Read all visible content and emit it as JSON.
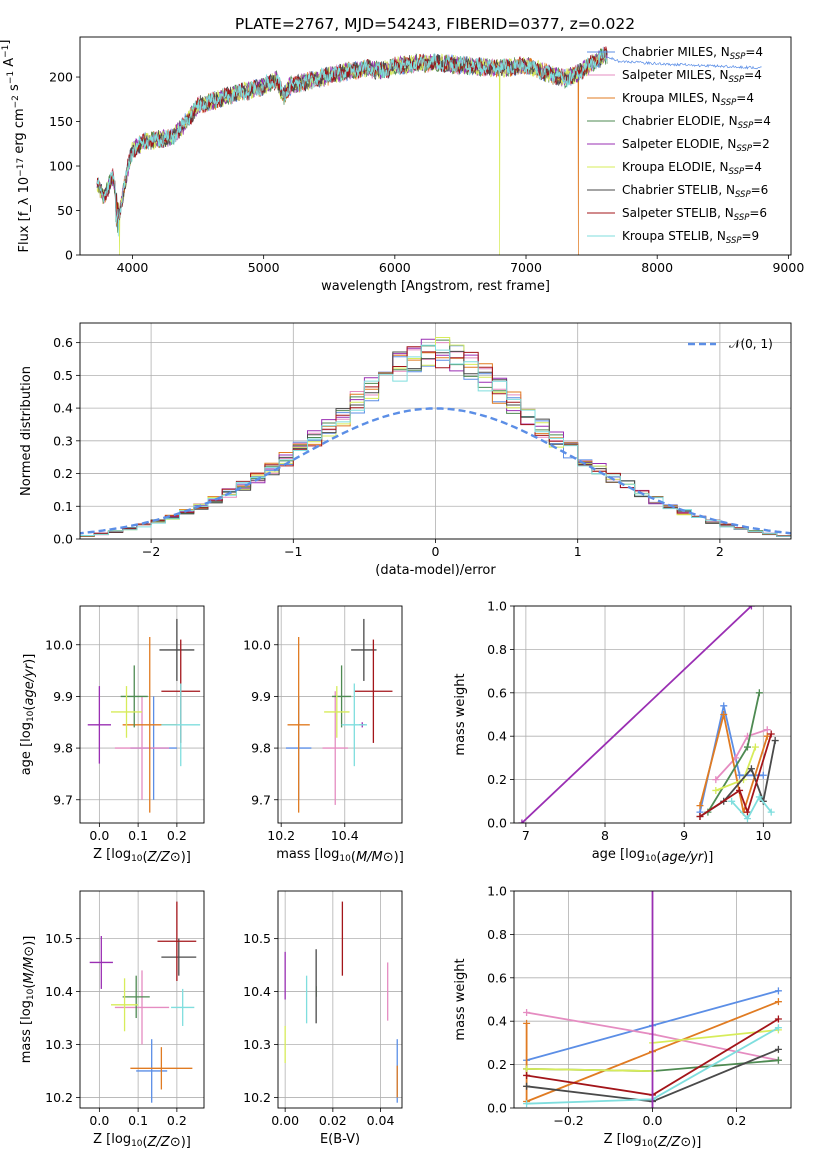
{
  "figure_title": "PLATE=2767, MJD=54243, FIBERID=0377, z=0.022",
  "models": [
    {
      "name": "Chabrier MILES",
      "nssp": "4",
      "color": "#5b8ee6"
    },
    {
      "name": "Salpeter MILES",
      "nssp": "4",
      "color": "#e58cc1"
    },
    {
      "name": "Kroupa MILES",
      "nssp": "4",
      "color": "#e07b22"
    },
    {
      "name": "Chabrier ELODIE",
      "nssp": "4",
      "color": "#4e8a52"
    },
    {
      "name": "Salpeter ELODIE",
      "nssp": "2",
      "color": "#9a2fb3"
    },
    {
      "name": "Kroupa ELODIE",
      "nssp": "4",
      "color": "#d7ec5a"
    },
    {
      "name": "Chabrier STELIB",
      "nssp": "6",
      "color": "#4a4a4a"
    },
    {
      "name": "Salpeter STELIB",
      "nssp": "6",
      "color": "#a3151a"
    },
    {
      "name": "Kroupa STELIB",
      "nssp": "9",
      "color": "#7fdede"
    }
  ],
  "chart_data": [
    {
      "id": "spectrum",
      "type": "line",
      "xlabel": "wavelength [Angstrom, rest frame]",
      "ylabel": "Flux [f_λ 10^-17 erg cm^-2 s^-1 A^-1]",
      "xlim": [
        3600,
        9020
      ],
      "ylim": [
        0,
        245
      ],
      "xticks": [
        4000,
        5000,
        6000,
        7000,
        8000,
        9000
      ],
      "yticks": [
        0,
        50,
        100,
        150,
        200
      ],
      "spectrum_knots": [
        [
          3730,
          80
        ],
        [
          3780,
          65
        ],
        [
          3850,
          88
        ],
        [
          3900,
          45
        ],
        [
          3960,
          95
        ],
        [
          4000,
          118
        ],
        [
          4100,
          128
        ],
        [
          4200,
          130
        ],
        [
          4300,
          132
        ],
        [
          4400,
          148
        ],
        [
          4500,
          168
        ],
        [
          4600,
          172
        ],
        [
          4700,
          178
        ],
        [
          4800,
          182
        ],
        [
          4900,
          185
        ],
        [
          5000,
          190
        ],
        [
          5100,
          197
        ],
        [
          5150,
          178
        ],
        [
          5200,
          190
        ],
        [
          5400,
          198
        ],
        [
          5600,
          205
        ],
        [
          5800,
          210
        ],
        [
          5900,
          207
        ],
        [
          6000,
          212
        ],
        [
          6200,
          216
        ],
        [
          6400,
          215
        ],
        [
          6600,
          212
        ],
        [
          6800,
          210
        ],
        [
          7000,
          213
        ],
        [
          7150,
          205
        ],
        [
          7300,
          198
        ],
        [
          7400,
          205
        ],
        [
          7500,
          215
        ],
        [
          7600,
          225
        ],
        [
          7700,
          218
        ],
        [
          8000,
          215
        ],
        [
          8500,
          212
        ],
        [
          8800,
          210
        ]
      ],
      "series_drop_wavelengths": {
        "Kroupa ELODIE": [
          3900,
          6800
        ],
        "Kroupa MILES": [
          7400
        ]
      },
      "legend_position": "upper right",
      "grid": false
    },
    {
      "id": "residual-histogram",
      "type": "bar",
      "xlabel": "(data-model)/error",
      "ylabel": "Normed distribution",
      "xlim": [
        -2.5,
        2.5
      ],
      "ylim": [
        0,
        0.66
      ],
      "xticks": [
        -2,
        -1,
        0,
        1,
        2
      ],
      "yticks": [
        0.0,
        0.1,
        0.2,
        0.3,
        0.4,
        0.5,
        0.6
      ],
      "bin_width": 0.1,
      "reference_curve": "𝒩(0, 1)",
      "legend_position": "upper right",
      "grid": true
    },
    {
      "id": "age-vs-Z",
      "type": "scatter",
      "xlabel": "Z [log10(Z/Z⊙)]",
      "ylabel": "age [log10(age/yr)]",
      "xlim": [
        -0.05,
        0.27
      ],
      "ylim": [
        9.655,
        10.075
      ],
      "xticks": [
        0.0,
        0.1,
        0.2
      ],
      "yticks": [
        9.7,
        9.8,
        9.9,
        10.0
      ],
      "points": [
        {
          "series": "Chabrier MILES",
          "x": 0.14,
          "xerr": 0.06,
          "y": 9.8,
          "yerr": 0.1
        },
        {
          "series": "Salpeter MILES",
          "x": 0.11,
          "xerr": 0.07,
          "y": 9.8,
          "yerr": 0.1
        },
        {
          "series": "Kroupa MILES",
          "x": 0.13,
          "xerr": 0.07,
          "y": 9.845,
          "yerr": 0.17
        },
        {
          "series": "Chabrier ELODIE",
          "x": 0.09,
          "xerr": 0.035,
          "y": 9.9,
          "yerr": 0.06
        },
        {
          "series": "Salpeter ELODIE",
          "x": 0.0,
          "xerr": 0.03,
          "y": 9.845,
          "yerr": 0.075
        },
        {
          "series": "Kroupa ELODIE",
          "x": 0.07,
          "xerr": 0.04,
          "y": 9.87,
          "yerr": 0.05
        },
        {
          "series": "Chabrier STELIB",
          "x": 0.2,
          "xerr": 0.045,
          "y": 9.99,
          "yerr": 0.06
        },
        {
          "series": "Salpeter STELIB",
          "x": 0.21,
          "xerr": 0.05,
          "y": 9.91,
          "yerr": 0.1
        },
        {
          "series": "Kroupa STELIB",
          "x": 0.21,
          "xerr": 0.05,
          "y": 9.845,
          "yerr": 0.08
        }
      ],
      "grid": true
    },
    {
      "id": "age-vs-mass",
      "type": "scatter",
      "xlabel": "mass [log10(M/M⊙)]",
      "ylabel": "",
      "xlim": [
        10.19,
        10.58
      ],
      "ylim": [
        9.655,
        10.075
      ],
      "xticks": [
        10.2,
        10.4
      ],
      "yticks": [
        9.7,
        9.8,
        9.9,
        10.0
      ],
      "points": [
        {
          "series": "Chabrier MILES",
          "x": 10.255,
          "xerr": 0.04,
          "y": 9.8,
          "yerr": 0.1
        },
        {
          "series": "Salpeter MILES",
          "x": 10.37,
          "xerr": 0.04,
          "y": 9.8,
          "yerr": 0.11
        },
        {
          "series": "Kroupa MILES",
          "x": 10.255,
          "xerr": 0.035,
          "y": 9.845,
          "yerr": 0.17
        },
        {
          "series": "Chabrier ELODIE",
          "x": 10.39,
          "xerr": 0.03,
          "y": 9.9,
          "yerr": 0.06
        },
        {
          "series": "Salpeter ELODIE",
          "x": 10.455,
          "xerr": 0.01,
          "y": 9.845,
          "yerr": 0.005
        },
        {
          "series": "Kroupa ELODIE",
          "x": 10.375,
          "xerr": 0.04,
          "y": 9.87,
          "yerr": 0.05
        },
        {
          "series": "Chabrier STELIB",
          "x": 10.46,
          "xerr": 0.04,
          "y": 9.99,
          "yerr": 0.06
        },
        {
          "series": "Salpeter STELIB",
          "x": 10.49,
          "xerr": 0.06,
          "y": 9.91,
          "yerr": 0.1
        },
        {
          "series": "Kroupa STELIB",
          "x": 10.43,
          "xerr": 0.04,
          "y": 9.845,
          "yerr": 0.08
        }
      ],
      "grid": true
    },
    {
      "id": "massweight-vs-age",
      "type": "line",
      "xlabel": "age [log10(age/yr)]",
      "ylabel": "mass weight",
      "xlim": [
        6.85,
        10.35
      ],
      "ylim": [
        0,
        1.0
      ],
      "xticks": [
        7,
        8,
        9,
        10
      ],
      "yticks": [
        0.0,
        0.2,
        0.4,
        0.6,
        0.8,
        1.0
      ],
      "series": [
        {
          "name": "Salpeter ELODIE",
          "x": [
            6.95,
            9.85
          ],
          "y": [
            0.0,
            1.0
          ]
        },
        {
          "name": "Chabrier MILES",
          "x": [
            9.2,
            9.5,
            9.7,
            10.0
          ],
          "y": [
            0.05,
            0.54,
            0.22,
            0.22
          ]
        },
        {
          "name": "Salpeter MILES",
          "x": [
            9.4,
            9.65,
            9.8,
            10.05
          ],
          "y": [
            0.2,
            0.3,
            0.4,
            0.43
          ]
        },
        {
          "name": "Kroupa MILES",
          "x": [
            9.2,
            9.5,
            9.75,
            10.05
          ],
          "y": [
            0.08,
            0.5,
            0.05,
            0.4
          ]
        },
        {
          "name": "Chabrier ELODIE",
          "x": [
            9.3,
            9.8,
            9.95
          ],
          "y": [
            0.05,
            0.35,
            0.6
          ]
        },
        {
          "name": "Kroupa ELODIE",
          "x": [
            9.4,
            9.75,
            9.9
          ],
          "y": [
            0.15,
            0.2,
            0.35
          ]
        },
        {
          "name": "Chabrier STELIB",
          "x": [
            9.2,
            9.5,
            9.85,
            10.0,
            10.15
          ],
          "y": [
            0.03,
            0.1,
            0.25,
            0.1,
            0.38
          ]
        },
        {
          "name": "Salpeter STELIB",
          "x": [
            9.2,
            9.7,
            9.8,
            10.1
          ],
          "y": [
            0.03,
            0.15,
            0.05,
            0.41
          ]
        },
        {
          "name": "Kroupa STELIB",
          "x": [
            9.6,
            9.8,
            9.95,
            10.1
          ],
          "y": [
            0.1,
            0.02,
            0.12,
            0.05
          ]
        }
      ],
      "grid": true
    },
    {
      "id": "mass-vs-Z",
      "type": "scatter",
      "xlabel": "Z [log10(Z/Z⊙)]",
      "ylabel": "mass [log10(M/M⊙)]",
      "xlim": [
        -0.05,
        0.27
      ],
      "ylim": [
        10.18,
        10.59
      ],
      "xticks": [
        0.0,
        0.1,
        0.2
      ],
      "yticks": [
        10.2,
        10.3,
        10.4,
        10.5
      ],
      "points": [
        {
          "series": "Chabrier MILES",
          "x": 0.135,
          "xerr": 0.04,
          "y": 10.25,
          "yerr": 0.06
        },
        {
          "series": "Salpeter MILES",
          "x": 0.11,
          "xerr": 0.07,
          "y": 10.37,
          "yerr": 0.07
        },
        {
          "series": "Kroupa MILES",
          "x": 0.16,
          "xerr": 0.08,
          "y": 10.255,
          "yerr": 0.04
        },
        {
          "series": "Chabrier ELODIE",
          "x": 0.095,
          "xerr": 0.035,
          "y": 10.39,
          "yerr": 0.04
        },
        {
          "series": "Salpeter ELODIE",
          "x": 0.005,
          "xerr": 0.03,
          "y": 10.455,
          "yerr": 0.05
        },
        {
          "series": "Kroupa ELODIE",
          "x": 0.065,
          "xerr": 0.035,
          "y": 10.375,
          "yerr": 0.05
        },
        {
          "series": "Chabrier STELIB",
          "x": 0.205,
          "xerr": 0.045,
          "y": 10.465,
          "yerr": 0.035
        },
        {
          "series": "Salpeter STELIB",
          "x": 0.2,
          "xerr": 0.05,
          "y": 10.495,
          "yerr": 0.075
        },
        {
          "series": "Kroupa STELIB",
          "x": 0.215,
          "xerr": 0.03,
          "y": 10.37,
          "yerr": 0.035
        }
      ],
      "grid": true
    },
    {
      "id": "mass-vs-EBV",
      "type": "scatter",
      "xlabel": "E(B-V)",
      "ylabel": "",
      "xlim": [
        -0.003,
        0.049
      ],
      "ylim": [
        10.18,
        10.59
      ],
      "xticks": [
        0.0,
        0.02,
        0.04
      ],
      "yticks": [
        10.2,
        10.3,
        10.4,
        10.5
      ],
      "points": [
        {
          "series": "Chabrier MILES",
          "x": 0.047,
          "y": 10.25,
          "yerr": 0.06
        },
        {
          "series": "Salpeter MILES",
          "x": 0.043,
          "y": 10.4,
          "yerr": 0.055
        },
        {
          "series": "Kroupa MILES",
          "x": 0.047,
          "y": 10.23,
          "yerr": 0.03
        },
        {
          "series": "Chabrier ELODIE",
          "x": 0.013,
          "y": 10.4,
          "yerr": 0.01
        },
        {
          "series": "Salpeter ELODIE",
          "x": 0.0,
          "y": 10.43,
          "yerr": 0.045
        },
        {
          "series": "Kroupa ELODIE",
          "x": 0.0,
          "y": 10.3,
          "yerr": 0.035
        },
        {
          "series": "Chabrier STELIB",
          "x": 0.013,
          "y": 10.41,
          "yerr": 0.07
        },
        {
          "series": "Salpeter STELIB",
          "x": 0.024,
          "y": 10.5,
          "yerr": 0.07
        },
        {
          "series": "Kroupa STELIB",
          "x": 0.009,
          "y": 10.385,
          "yerr": 0.045
        }
      ],
      "grid": true
    },
    {
      "id": "massweight-vs-Z",
      "type": "line",
      "xlabel": "Z [log10(Z/Z⊙)]",
      "ylabel": "mass weight",
      "xlim": [
        -0.33,
        0.33
      ],
      "ylim": [
        0,
        1.0
      ],
      "xticks": [
        -0.2,
        0.0,
        0.2
      ],
      "yticks": [
        0.0,
        0.2,
        0.4,
        0.6,
        0.8,
        1.0
      ],
      "series": [
        {
          "name": "Chabrier MILES",
          "x": [
            -0.3,
            0.0,
            0.3
          ],
          "y": [
            0.22,
            0.38,
            0.54
          ]
        },
        {
          "name": "Salpeter MILES",
          "x": [
            -0.3,
            0.0,
            0.3
          ],
          "y": [
            0.44,
            0.34,
            0.22
          ]
        },
        {
          "name": "Kroupa MILES",
          "x": [
            -0.3,
            -0.3,
            0.0,
            0.3
          ],
          "y": [
            0.39,
            0.03,
            0.26,
            0.49
          ]
        },
        {
          "name": "Chabrier ELODIE",
          "x": [
            -0.3,
            0.0,
            0.3
          ],
          "y": [
            0.18,
            0.17,
            0.22
          ]
        },
        {
          "name": "Kroupa ELODIE",
          "x": [
            -0.3,
            0.0,
            0.0,
            0.3
          ],
          "y": [
            0.18,
            0.17,
            0.3,
            0.36
          ]
        },
        {
          "name": "Chabrier STELIB",
          "x": [
            -0.3,
            0.0,
            0.3
          ],
          "y": [
            0.1,
            0.03,
            0.27
          ]
        },
        {
          "name": "Salpeter STELIB",
          "x": [
            -0.3,
            0.0,
            0.3
          ],
          "y": [
            0.15,
            0.06,
            0.41
          ]
        },
        {
          "name": "Kroupa STELIB",
          "x": [
            -0.3,
            0.0,
            0.3
          ],
          "y": [
            0.02,
            0.04,
            0.37
          ]
        }
      ],
      "vertical_series": {
        "name": "Salpeter ELODIE",
        "x": 0.0,
        "y": [
          0.0,
          1.0
        ]
      },
      "grid": true
    }
  ]
}
